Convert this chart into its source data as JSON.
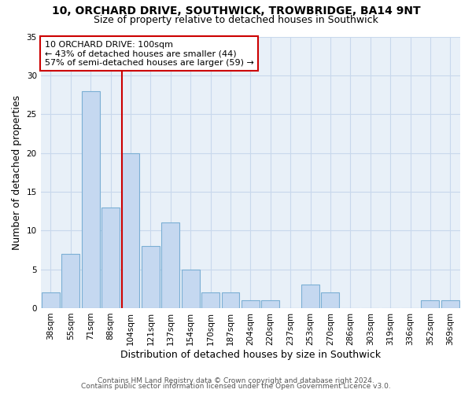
{
  "title1": "10, ORCHARD DRIVE, SOUTHWICK, TROWBRIDGE, BA14 9NT",
  "title2": "Size of property relative to detached houses in Southwick",
  "xlabel": "Distribution of detached houses by size in Southwick",
  "ylabel": "Number of detached properties",
  "bar_labels": [
    "38sqm",
    "55sqm",
    "71sqm",
    "88sqm",
    "104sqm",
    "121sqm",
    "137sqm",
    "154sqm",
    "170sqm",
    "187sqm",
    "204sqm",
    "220sqm",
    "237sqm",
    "253sqm",
    "270sqm",
    "286sqm",
    "303sqm",
    "319sqm",
    "336sqm",
    "352sqm",
    "369sqm"
  ],
  "bar_values": [
    2,
    7,
    28,
    13,
    20,
    8,
    11,
    5,
    2,
    2,
    1,
    1,
    0,
    3,
    2,
    0,
    0,
    0,
    0,
    1,
    1
  ],
  "bar_color": "#C5D8F0",
  "bar_edge_color": "#7BAFD4",
  "vline_x_index": 4,
  "vline_color": "#CC0000",
  "annotation_box_text": "10 ORCHARD DRIVE: 100sqm\n← 43% of detached houses are smaller (44)\n57% of semi-detached houses are larger (59) →",
  "annotation_box_color": "#CC0000",
  "annotation_fontsize": 8,
  "ylim": [
    0,
    35
  ],
  "yticks": [
    0,
    5,
    10,
    15,
    20,
    25,
    30,
    35
  ],
  "grid_color": "#C8D8EC",
  "bg_color": "#E8F0F8",
  "footer_line1": "Contains HM Land Registry data © Crown copyright and database right 2024.",
  "footer_line2": "Contains public sector information licensed under the Open Government Licence v3.0.",
  "title_fontsize": 10,
  "subtitle_fontsize": 9,
  "axis_label_fontsize": 9,
  "tick_fontsize": 7.5,
  "footer_fontsize": 6.5
}
